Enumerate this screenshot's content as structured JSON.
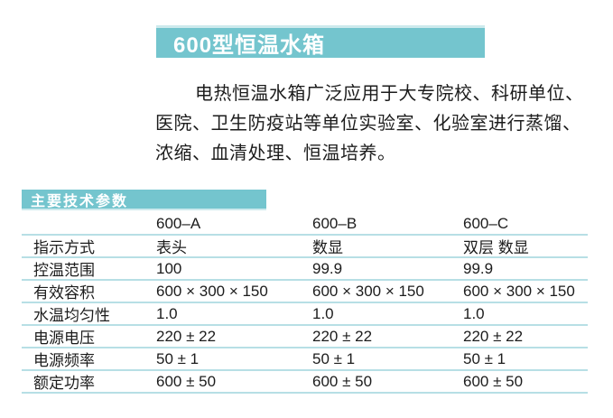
{
  "colors": {
    "teal": "#74c5ce",
    "teal-light": "#cdeaed",
    "line": "#b7dfe5",
    "ink": "#1c1c1c"
  },
  "title_bar": {
    "text": "600型恒温水箱"
  },
  "intro": {
    "lines": [
      "电热恒温水箱广泛应用于大专院校、科研单位、",
      "医院、卫生防疫站等单位实验室、化验室进行蒸馏、",
      "浓缩、血清处理、恒温培养。"
    ]
  },
  "section_header": {
    "text": "主要技术参数"
  },
  "table": {
    "columns": [
      "",
      "600–A",
      "600–B",
      "600–C"
    ],
    "rows": [
      {
        "label": "指示方式",
        "values": [
          "表头",
          "数显",
          "双层 数显"
        ]
      },
      {
        "label": "控温范围",
        "values": [
          "100",
          "99.9",
          "99.9"
        ]
      },
      {
        "label": "有效容积",
        "values": [
          "600 × 300 × 150",
          "600 × 300 × 150",
          "600 × 300 × 150"
        ]
      },
      {
        "label": "水温均匀性",
        "values": [
          "1.0",
          "1.0",
          "1.0"
        ]
      },
      {
        "label": "电源电压",
        "values": [
          "220 ± 22",
          "220 ± 22",
          "220 ± 22"
        ]
      },
      {
        "label": "电源频率",
        "values": [
          "50 ± 1",
          "50 ± 1",
          "50 ± 1"
        ]
      },
      {
        "label": "额定功率",
        "values": [
          "600 ± 50",
          "600 ± 50",
          "600 ± 50"
        ]
      }
    ]
  }
}
